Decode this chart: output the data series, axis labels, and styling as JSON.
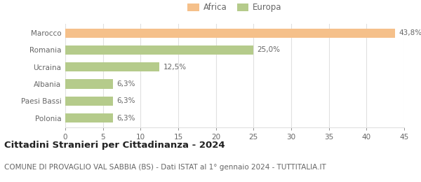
{
  "categories": [
    "Marocco",
    "Romania",
    "Ucraina",
    "Albania",
    "Paesi Bassi",
    "Polonia"
  ],
  "values": [
    43.8,
    25.0,
    12.5,
    6.3,
    6.3,
    6.3
  ],
  "labels": [
    "43,8%",
    "25,0%",
    "12,5%",
    "6,3%",
    "6,3%",
    "6,3%"
  ],
  "colors": [
    "#f5c08a",
    "#b5cb8b",
    "#b5cb8b",
    "#b5cb8b",
    "#b5cb8b",
    "#b5cb8b"
  ],
  "legend": [
    {
      "label": "Africa",
      "color": "#f5c08a"
    },
    {
      "label": "Europa",
      "color": "#b5cb8b"
    }
  ],
  "xlim": [
    0,
    45
  ],
  "xticks": [
    0,
    5,
    10,
    15,
    20,
    25,
    30,
    35,
    40,
    45
  ],
  "title": "Cittadini Stranieri per Cittadinanza - 2024",
  "subtitle": "COMUNE DI PROVAGLIO VAL SABBIA (BS) - Dati ISTAT al 1° gennaio 2024 - TUTTITALIA.IT",
  "background_color": "#ffffff",
  "bar_height": 0.55,
  "label_fontsize": 7.5,
  "title_fontsize": 9.5,
  "subtitle_fontsize": 7.5,
  "tick_fontsize": 7.5,
  "legend_fontsize": 8.5,
  "grid_color": "#e0e0e0",
  "text_color": "#666666",
  "title_color": "#222222"
}
